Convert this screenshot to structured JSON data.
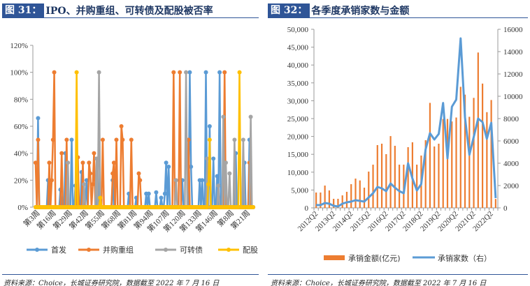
{
  "left": {
    "fig_num": "图 31：",
    "title": "IPO、并购重组、可转债及配股被否率",
    "source": "资料来源：Choice，长城证券研究院，数据截至 2022 年 7 月 16 日"
  },
  "right": {
    "fig_num": "图 32：",
    "title": "各季度承销家数与金额",
    "source": "资料来源：Choice，长城证券研究院，数据截至 2022 年 7 月 16 日"
  },
  "colors": {
    "blue": "#5B9BD5",
    "orange": "#ED7D31",
    "gray": "#A5A5A5",
    "yellow": "#FFC000",
    "title_box": "#2F5597",
    "title_text": "#1F3864"
  },
  "chart_data": [
    {
      "type": "line",
      "n_points": 176,
      "ylim": [
        0,
        120
      ],
      "y_ticks": [
        "0%",
        "20%",
        "40%",
        "60%",
        "80%",
        "100%",
        "120%"
      ],
      "x_ticks": [
        [
          3,
          "第3周"
        ],
        [
          16,
          "第16周"
        ],
        [
          29,
          "第29周"
        ],
        [
          42,
          "第42周"
        ],
        [
          55,
          "第55周"
        ],
        [
          68,
          "第68周"
        ],
        [
          81,
          "第81周"
        ],
        [
          94,
          "第94周"
        ],
        [
          107,
          "第107周"
        ],
        [
          120,
          "第120周"
        ],
        [
          133,
          "第133周"
        ],
        [
          146,
          "第146周"
        ],
        [
          159,
          "第8周"
        ],
        [
          172,
          "第21周"
        ]
      ],
      "legend": "bottom",
      "grid": false,
      "series": [
        {
          "name": "首发",
          "color": "#5B9BD5",
          "points": [
            [
              3,
              66
            ],
            [
              11,
              20
            ],
            [
              21,
              13
            ],
            [
              25,
              40
            ],
            [
              30,
              50
            ],
            [
              33,
              16
            ],
            [
              38,
              26
            ],
            [
              42,
              20
            ],
            [
              51,
              36
            ],
            [
              63,
              20
            ],
            [
              76,
              10
            ],
            [
              82,
              7
            ],
            [
              90,
              10
            ],
            [
              92,
              10
            ],
            [
              98,
              11
            ],
            [
              102,
              7
            ],
            [
              105,
              10
            ],
            [
              106,
              33
            ],
            [
              108,
              30
            ],
            [
              119,
              20
            ],
            [
              125,
              100
            ],
            [
              126,
              30
            ],
            [
              133,
              20
            ],
            [
              135,
              20
            ],
            [
              138,
              100
            ],
            [
              141,
              60
            ],
            [
              144,
              36
            ],
            [
              147,
              23
            ],
            [
              149,
              100
            ],
            [
              162,
              40
            ],
            [
              169,
              33
            ],
            [
              173,
              50
            ]
          ]
        },
        {
          "name": "并购重组",
          "color": "#ED7D31",
          "points": [
            [
              1,
              33
            ],
            [
              3,
              50
            ],
            [
              12,
              33
            ],
            [
              14,
              20
            ],
            [
              15,
              50
            ],
            [
              16,
              100
            ],
            [
              22,
              40
            ],
            [
              26,
              50
            ],
            [
              35,
              37
            ],
            [
              39,
              33
            ],
            [
              44,
              33
            ],
            [
              45,
              25
            ],
            [
              47,
              17
            ],
            [
              48,
              40
            ],
            [
              55,
              50
            ],
            [
              63,
              25
            ],
            [
              64,
              33
            ],
            [
              66,
              50
            ],
            [
              70,
              60
            ],
            [
              71,
              50
            ],
            [
              78,
              50
            ],
            [
              84,
              25
            ],
            [
              85,
              20
            ],
            [
              112,
              100
            ],
            [
              117,
              100
            ],
            [
              124,
              50
            ],
            [
              153,
              100
            ],
            [
              173,
              33
            ]
          ]
        },
        {
          "name": "可转债",
          "color": "#A5A5A5",
          "points": [
            [
              27,
              33
            ],
            [
              40,
              17
            ],
            [
              50,
              36
            ],
            [
              52,
              100
            ],
            [
              114,
              20
            ],
            [
              122,
              100
            ],
            [
              139,
              36
            ],
            [
              148,
              16
            ],
            [
              152,
              67
            ],
            [
              154,
              33
            ],
            [
              157,
              25
            ],
            [
              161,
              50
            ],
            [
              168,
              50
            ],
            [
              174,
              67
            ]
          ]
        },
        {
          "name": "配股",
          "color": "#FFC000",
          "points": [
            [
              34,
              100
            ],
            [
              53,
              7
            ],
            [
              140,
              17
            ],
            [
              141,
              50
            ],
            [
              165,
              100
            ]
          ]
        }
      ]
    },
    {
      "type": "bar+line",
      "categories": [
        "2012Q2",
        "2012Q3",
        "2012Q4",
        "2013Q1",
        "2013Q2",
        "2013Q3",
        "2013Q4",
        "2014Q1",
        "2014Q2",
        "2014Q3",
        "2014Q4",
        "2015Q1",
        "2015Q2",
        "2015Q3",
        "2015Q4",
        "2016Q1",
        "2016Q2",
        "2016Q3",
        "2016Q4",
        "2017Q1",
        "2017Q2",
        "2017Q3",
        "2017Q4",
        "2018Q1",
        "2018Q2",
        "2018Q3",
        "2018Q4",
        "2019Q1",
        "2019Q2",
        "2019Q3",
        "2019Q4",
        "2020Q1",
        "2020Q2",
        "2020Q3",
        "2020Q4",
        "2021Q1",
        "2021Q2",
        "2021Q3",
        "2021Q4",
        "2022Q1",
        "2022Q2",
        "2022Q3"
      ],
      "x_tick_labels": [
        "2012Q2",
        "2013Q2",
        "2014Q2",
        "2015Q2",
        "2016Q2",
        "2017Q2",
        "2018Q2",
        "2019Q2",
        "2020Q2",
        "2021Q2",
        "2022Q2"
      ],
      "y_left": {
        "lim": [
          0,
          50000
        ],
        "ticks": [
          "0",
          "5,000",
          "10,000",
          "15,000",
          "20,000",
          "25,000",
          "30,000",
          "35,000",
          "40,000",
          "45,000",
          "50,000"
        ]
      },
      "y_right": {
        "lim": [
          0,
          16000
        ],
        "ticks": [
          "0",
          "2000",
          "4000",
          "6000",
          "8000",
          "10000",
          "12000",
          "14000",
          "16000"
        ]
      },
      "legend": "bottom",
      "series": [
        {
          "name": "承销金额(亿元)",
          "type": "bar",
          "axis": "left",
          "color": "#ED7D31",
          "values": [
            4300,
            4300,
            6250,
            4880,
            2540,
            2540,
            3500,
            4500,
            6640,
            8200,
            7680,
            5660,
            10160,
            12100,
            17580,
            17970,
            15040,
            20100,
            17380,
            12100,
            12100,
            17000,
            18360,
            12100,
            14650,
            18950,
            29400,
            17190,
            17970,
            24900,
            24900,
            24200,
            25300,
            33900,
            31700,
            25500,
            30800,
            43500,
            34800,
            26800,
            30200,
            2500
          ]
        },
        {
          "name": "承销家数（右）",
          "type": "line",
          "axis": "right",
          "color": "#5B9BD5",
          "values": [
            250,
            250,
            440,
            375,
            190,
            125,
            375,
            500,
            560,
            690,
            625,
            560,
            940,
            1310,
            1875,
            1750,
            1500,
            2190,
            1810,
            1500,
            1310,
            4000,
            2625,
            1560,
            2125,
            5250,
            6690,
            6125,
            6625,
            9400,
            4440,
            9060,
            9700,
            15190,
            8125,
            4750,
            6375,
            8000,
            7690,
            6190,
            7625,
            875
          ]
        }
      ]
    }
  ]
}
